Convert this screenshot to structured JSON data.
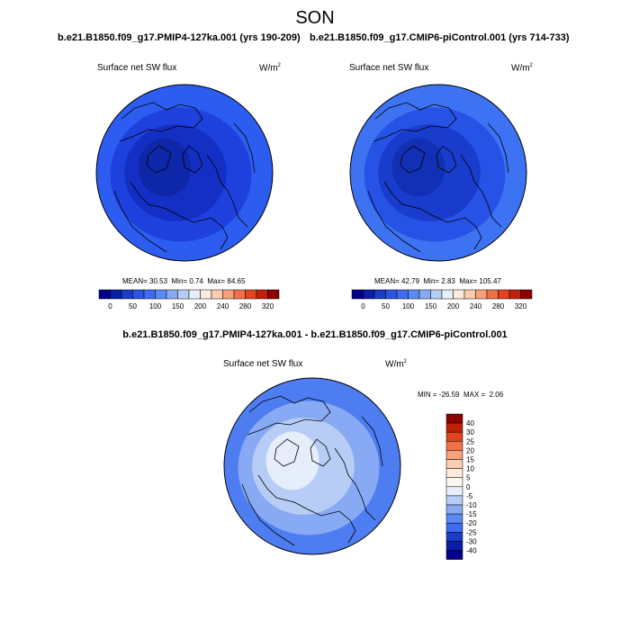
{
  "page": {
    "season": "SON"
  },
  "panels": [
    {
      "case_title": "b.e21.B1850.f09_g17.PMIP4-127ka.001 (yrs 190-209)",
      "variable": "Surface net SW flux",
      "units": "W/m",
      "units_exp": "2",
      "stats": {
        "mean_label": "MEAN=",
        "mean": "30.53",
        "min_label": "Min=",
        "min": "0.74",
        "max_label": "Max=",
        "max": "84.65"
      }
    },
    {
      "case_title": "b.e21.B1850.f09_g17.CMIP6-piControl.001 (yrs 714-733)",
      "variable": "Surface net SW flux",
      "units": "W/m",
      "units_exp": "2",
      "stats": {
        "mean_label": "MEAN=",
        "mean": "42.79",
        "min_label": "Min=",
        "min": "2.83",
        "max_label": "Max=",
        "max": "105.47"
      }
    }
  ],
  "difference": {
    "case_title": "b.e21.B1850.f09_g17.PMIP4-127ka.001 - b.e21.B1850.f09_g17.CMIP6-piControl.001",
    "variable": "Surface net SW flux",
    "units": "W/m",
    "units_exp": "2",
    "stats": {
      "min_label": "MIN =",
      "min": "-26.59",
      "max_label": "MAX =",
      "max": "2.06"
    }
  },
  "chart_data": [
    {
      "type": "heatmap",
      "projection": "north-polar-stereographic",
      "title": "Surface net SW flux",
      "stats": {
        "mean": 30.53,
        "min": 0.74,
        "max": 84.65
      },
      "colorbar": {
        "orientation": "horizontal",
        "tick_labels": [
          "0",
          "50",
          "100",
          "150",
          "200",
          "240",
          "280",
          "320"
        ],
        "colors": [
          "#00008c",
          "#0a1ea5",
          "#1a3cc8",
          "#2a55e0",
          "#3c6cf0",
          "#5a8af5",
          "#88aaf5",
          "#b8cdf5",
          "#e6eefb",
          "#fdebdd",
          "#fbcdb0",
          "#f7a07a",
          "#f07048",
          "#e04520",
          "#c02008",
          "#8c0000"
        ]
      },
      "field_colors": {
        "outer_ring": "#2c5df0",
        "middle": "#1e40dc",
        "core": "#1430c4",
        "inner": "#0e26a8"
      }
    },
    {
      "type": "heatmap",
      "projection": "north-polar-stereographic",
      "title": "Surface net SW flux",
      "stats": {
        "mean": 42.79,
        "min": 2.83,
        "max": 105.47
      },
      "colorbar": {
        "orientation": "horizontal",
        "tick_labels": [
          "0",
          "50",
          "100",
          "150",
          "200",
          "240",
          "280",
          "320"
        ],
        "colors": [
          "#00008c",
          "#0a1ea5",
          "#1a3cc8",
          "#2a55e0",
          "#3c6cf0",
          "#5a8af5",
          "#88aaf5",
          "#b8cdf5",
          "#e6eefb",
          "#fdebdd",
          "#fbcdb0",
          "#f7a07a",
          "#f07048",
          "#e04520",
          "#c02008",
          "#8c0000"
        ]
      },
      "field_colors": {
        "outer_ring": "#3d72f2",
        "middle": "#2652e6",
        "core": "#1a3ccc",
        "inner": "#1230b4"
      }
    },
    {
      "type": "heatmap",
      "projection": "north-polar-stereographic",
      "title": "Surface net SW flux",
      "stats": {
        "min": -26.59,
        "max": 2.06
      },
      "colorbar": {
        "orientation": "vertical",
        "tick_labels": [
          "40",
          "30",
          "25",
          "20",
          "15",
          "10",
          "5",
          "0",
          "-5",
          "-10",
          "-15",
          "-20",
          "-25",
          "-30",
          "-40"
        ],
        "colors": [
          "#8c0000",
          "#c02008",
          "#e04520",
          "#f07048",
          "#f7a07a",
          "#fbcdb0",
          "#fdebdd",
          "#fdf5ee",
          "#e6eefb",
          "#b8cdf5",
          "#88aaf5",
          "#5a8af5",
          "#3c6cf0",
          "#1a3cc8",
          "#0a1ea5",
          "#00008c"
        ]
      },
      "field_colors": {
        "outer_ring": "#4d7df0",
        "middle": "#88aaf5",
        "core": "#b8cdf5",
        "inner": "#e6eefb"
      }
    }
  ]
}
